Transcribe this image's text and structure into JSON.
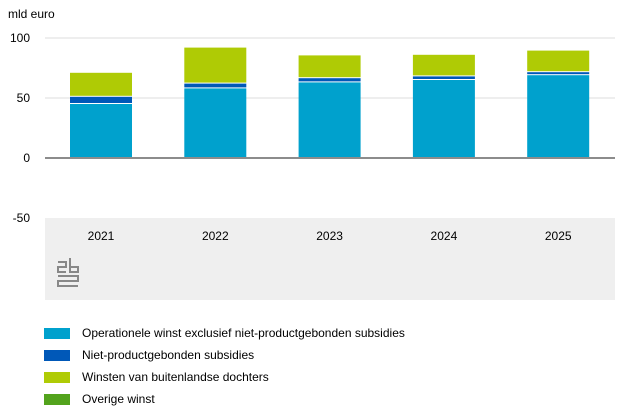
{
  "chart_data": {
    "type": "bar",
    "stacked": true,
    "ylabel": "mld euro",
    "ylim": [
      -50,
      100
    ],
    "yticks": [
      100,
      50,
      0,
      -50
    ],
    "categories": [
      "2021",
      "2022",
      "2023",
      "2024",
      "2025"
    ],
    "series": [
      {
        "name": "Operationele winst exclusief niet-productgebonden subsidies",
        "color": "#00a1cd",
        "values": [
          45,
          58,
          63,
          65,
          69
        ]
      },
      {
        "name": "Niet-productgebonden subsidies",
        "color": "#0058b8",
        "values": [
          6,
          4,
          3.5,
          3,
          2.5
        ]
      },
      {
        "name": "Winsten van buitenlandse dochters",
        "color": "#afcb05",
        "values": [
          20,
          30,
          19,
          18,
          18
        ]
      },
      {
        "name": "Overige winst",
        "color": "#53a31d",
        "values": [
          0,
          0,
          0,
          0,
          0
        ]
      }
    ],
    "grid": true,
    "legend": "bottom"
  }
}
